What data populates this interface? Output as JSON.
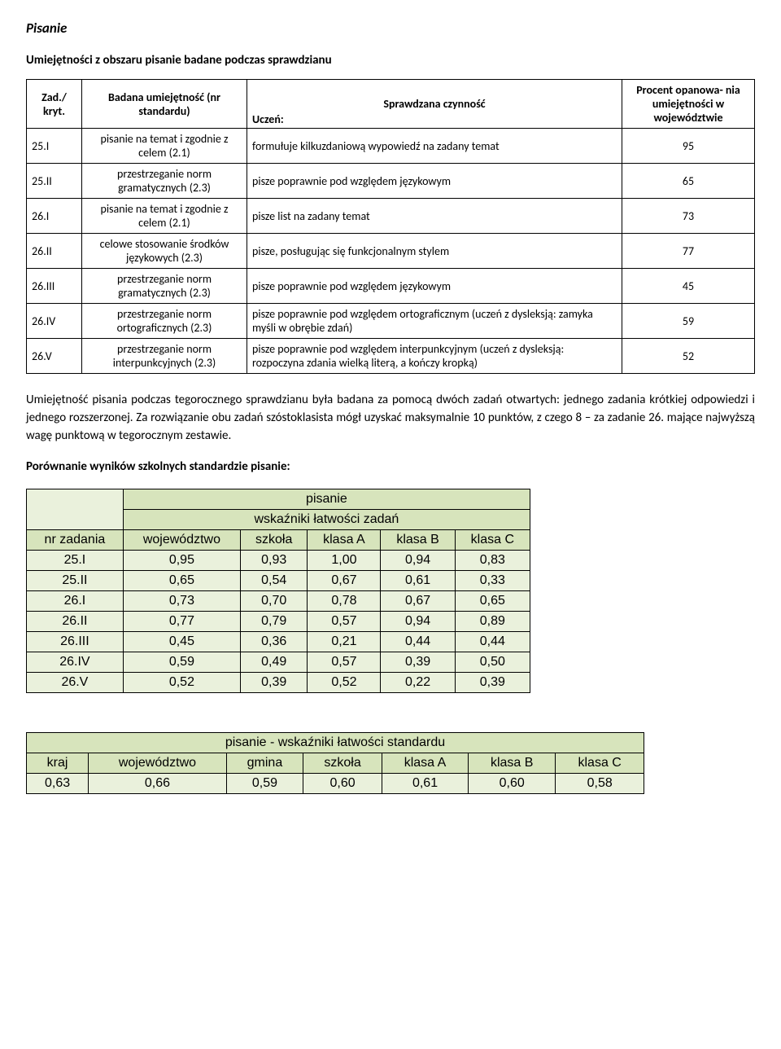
{
  "heading": "Pisanie",
  "subtitle": "Umiejętności z obszaru pisanie badane podczas sprawdzianu",
  "skills_table": {
    "headers": {
      "zad": "Zad./ kryt.",
      "skill": "Badana umiejętność (nr standardu)",
      "action": "Sprawdzana czynność",
      "uczen": "Uczeń:",
      "pct": "Procent opanowa- nia umiejętności w województwie"
    },
    "rows": [
      {
        "zad": "25.I",
        "skill": "pisanie na temat i zgodnie z celem (2.1)",
        "action": "formułuje kilkuzdaniową wypowiedź na zadany temat",
        "pct": "95"
      },
      {
        "zad": "25.II",
        "skill": "przestrzeganie norm gramatycznych (2.3)",
        "action": "pisze poprawnie pod względem językowym",
        "pct": "65"
      },
      {
        "zad": "26.I",
        "skill": "pisanie na temat i zgodnie z celem (2.1)",
        "action": "pisze list na zadany temat",
        "pct": "73"
      },
      {
        "zad": "26.II",
        "skill": "celowe stosowanie środków językowych (2.3)",
        "action": "pisze, posługując się funkcjonalnym stylem",
        "pct": "77"
      },
      {
        "zad": "26.III",
        "skill": "przestrzeganie norm gramatycznych (2.3)",
        "action": "pisze poprawnie pod względem językowym",
        "pct": "45"
      },
      {
        "zad": "26.IV",
        "skill": "przestrzeganie norm ortograficznych (2.3)",
        "action": "pisze poprawnie pod względem ortograficznym (uczeń z dysleksją: zamyka myśli w obrębie zdań)",
        "pct": "59"
      },
      {
        "zad": "26.V",
        "skill": "przestrzeganie norm interpunkcyjnych (2.3)",
        "action": "pisze poprawnie pod względem interpunkcyjnym (uczeń z dysleksją: rozpoczyna zdania wielką literą, a kończy kropką)",
        "pct": "52"
      }
    ]
  },
  "paragraph": "Umiejętność pisania podczas tegorocznego sprawdzianu była badana za pomocą dwóch zadań otwartych: jednego zadania krótkiej odpowiedzi i jednego rozszerzonej. Za rozwiązanie obu zadań szóstoklasista mógł uzyskać maksymalnie 10 punktów, z czego 8 – za zadanie 26. mające najwyższą wagę punktową w tegorocznym zestawie.",
  "compare_title": "Porównanie wyników szkolnych standardzie pisanie:",
  "results_table": {
    "title": "pisanie",
    "subtitle": "wskaźniki łatwości zadań",
    "col_headers": {
      "nr": "nr zadania",
      "woj": "województwo",
      "szk": "szkoła",
      "a": "klasa A",
      "b": "klasa B",
      "c": "klasa C"
    },
    "rows": [
      {
        "nr": "25.I",
        "woj": "0,95",
        "szk": "0,93",
        "a": "1,00",
        "b": "0,94",
        "c": "0,83"
      },
      {
        "nr": "25.II",
        "woj": "0,65",
        "szk": "0,54",
        "a": "0,67",
        "b": "0,61",
        "c": "0,33"
      },
      {
        "nr": "26.I",
        "woj": "0,73",
        "szk": "0,70",
        "a": "0,78",
        "b": "0,67",
        "c": "0,65"
      },
      {
        "nr": "26.II",
        "woj": "0,77",
        "szk": "0,79",
        "a": "0,57",
        "b": "0,94",
        "c": "0,89"
      },
      {
        "nr": "26.III",
        "woj": "0,45",
        "szk": "0,36",
        "a": "0,21",
        "b": "0,44",
        "c": "0,44"
      },
      {
        "nr": "26.IV",
        "woj": "0,59",
        "szk": "0,49",
        "a": "0,57",
        "b": "0,39",
        "c": "0,50"
      },
      {
        "nr": "26.V",
        "woj": "0,52",
        "szk": "0,39",
        "a": "0,52",
        "b": "0,22",
        "c": "0,39"
      }
    ]
  },
  "summary_table": {
    "title": "pisanie - wskaźniki łatwości standardu",
    "headers": {
      "kraj": "kraj",
      "woj": "województwo",
      "gmina": "gmina",
      "szk": "szkoła",
      "a": "klasa A",
      "b": "klasa B",
      "c": "klasa C"
    },
    "values": {
      "kraj": "0,63",
      "woj": "0,66",
      "gmina": "0,59",
      "szk": "0,60",
      "a": "0,61",
      "b": "0,60",
      "c": "0,58"
    }
  }
}
